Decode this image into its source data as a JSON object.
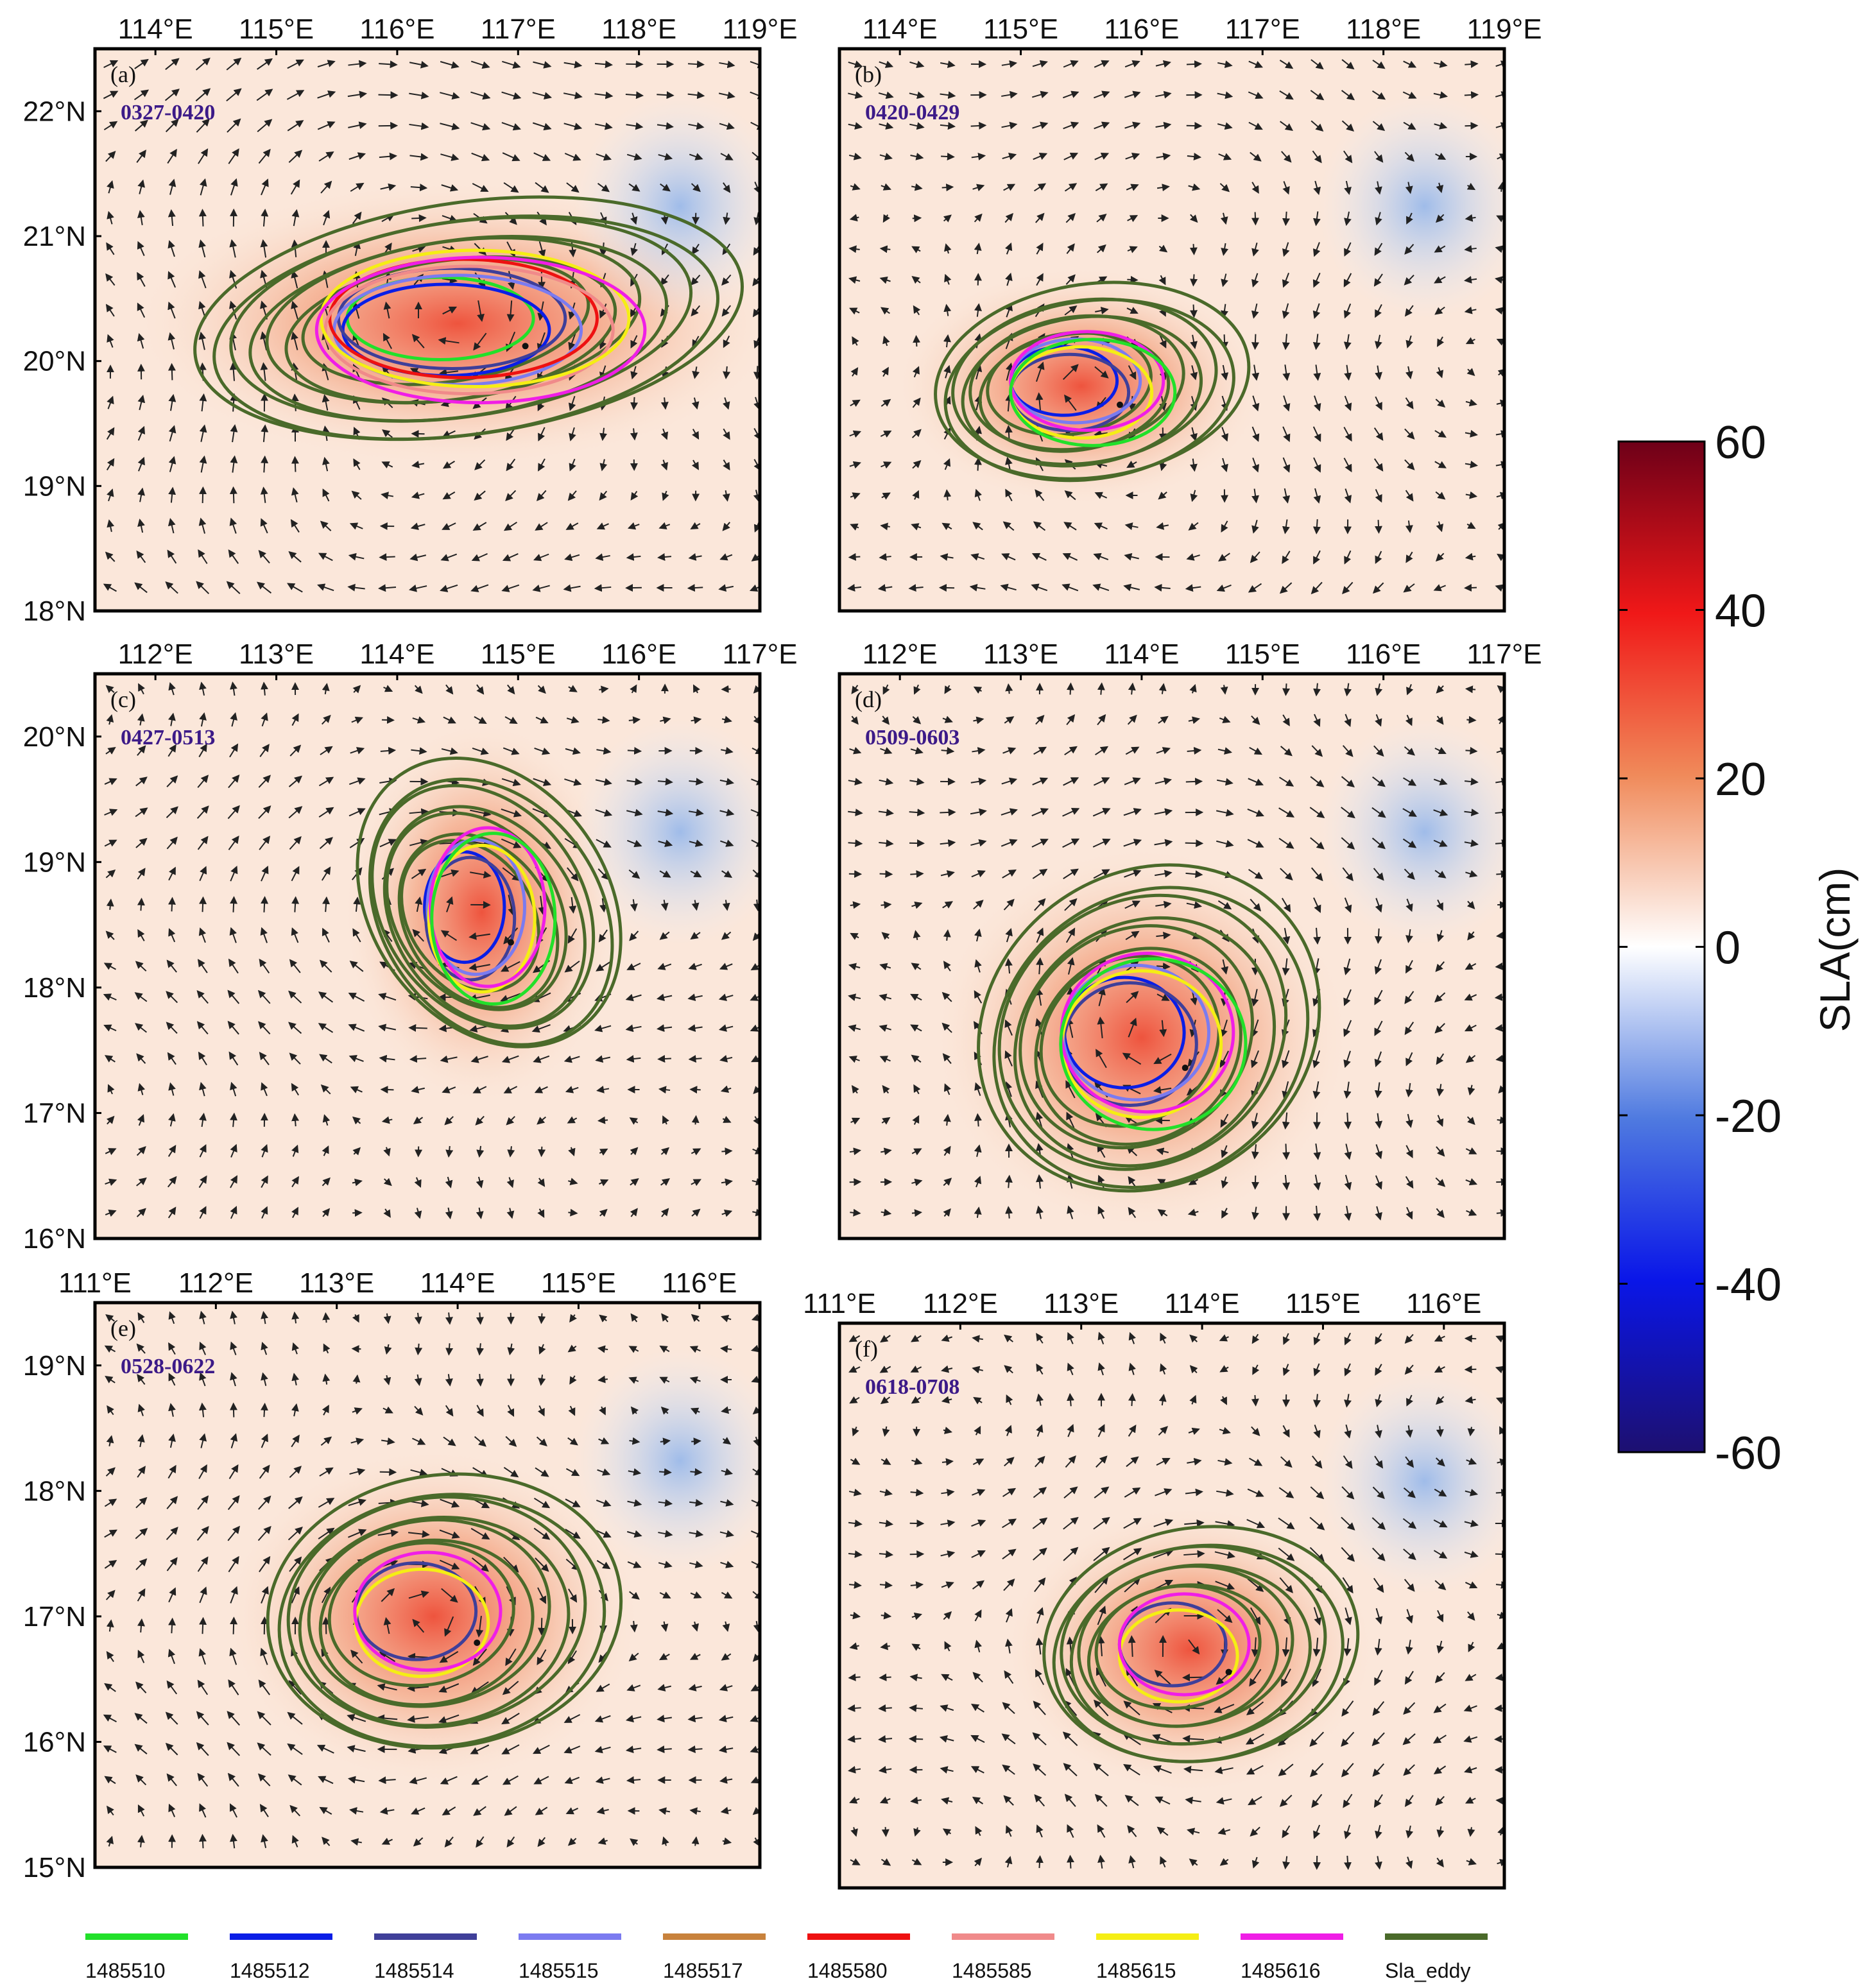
{
  "chart_data": [
    {
      "type": "heatmap",
      "panel_label": "(a)",
      "date_range": "0327-0420",
      "x_ticks": [
        "114°E",
        "115°E",
        "116°E",
        "117°E",
        "118°E",
        "119°E"
      ],
      "y_ticks": [
        "22°N",
        "21°N",
        "20°N",
        "19°N",
        "18°N"
      ],
      "xlim": [
        113.5,
        119.0
      ],
      "ylim": [
        18.0,
        22.5
      ],
      "xlabel": "",
      "ylabel": "",
      "eddy_center": [
        116.5,
        20.3
      ],
      "eddy_radius_deg": [
        1.4,
        0.6
      ],
      "field": "SLA (cm) with surface current vectors"
    },
    {
      "type": "heatmap",
      "panel_label": "(b)",
      "date_range": "0420-0429",
      "x_ticks": [
        "114°E",
        "115°E",
        "116°E",
        "117°E",
        "118°E",
        "119°E"
      ],
      "y_ticks": [],
      "xlim": [
        113.5,
        119.0
      ],
      "ylim": [
        18.0,
        22.5
      ],
      "eddy_center": [
        115.5,
        19.8
      ],
      "eddy_radius_deg": [
        0.8,
        0.5
      ],
      "field": "SLA (cm) with surface current vectors"
    },
    {
      "type": "heatmap",
      "panel_label": "(c)",
      "date_range": "0427-0513",
      "x_ticks": [
        "112°E",
        "113°E",
        "114°E",
        "115°E",
        "116°E",
        "117°E"
      ],
      "y_ticks": [
        "20°N",
        "19°N",
        "18°N",
        "17°N",
        "16°N"
      ],
      "xlim": [
        111.5,
        117.0
      ],
      "ylim": [
        16.0,
        20.5
      ],
      "eddy_center": [
        114.7,
        18.6
      ],
      "eddy_radius_deg": [
        0.6,
        0.8
      ],
      "field": "SLA (cm) with surface current vectors"
    },
    {
      "type": "heatmap",
      "panel_label": "(d)",
      "date_range": "0509-0603",
      "x_ticks": [
        "112°E",
        "113°E",
        "114°E",
        "115°E",
        "116°E",
        "117°E"
      ],
      "y_ticks": [],
      "xlim": [
        111.5,
        117.0
      ],
      "ylim": [
        16.0,
        20.5
      ],
      "eddy_center": [
        114.0,
        17.6
      ],
      "eddy_radius_deg": [
        0.9,
        0.8
      ],
      "field": "SLA (cm) with surface current vectors"
    },
    {
      "type": "heatmap",
      "panel_label": "(e)",
      "date_range": "0528-0622",
      "x_ticks": [
        "111°E",
        "112°E",
        "113°E",
        "114°E",
        "115°E",
        "116°E"
      ],
      "y_ticks": [
        "19°N",
        "18°N",
        "17°N",
        "16°N",
        "15°N"
      ],
      "xlim": [
        111.0,
        116.5
      ],
      "ylim": [
        15.0,
        19.5
      ],
      "eddy_center": [
        113.8,
        17.0
      ],
      "eddy_radius_deg": [
        0.9,
        0.7
      ],
      "field": "SLA (cm) with surface current vectors"
    },
    {
      "type": "heatmap",
      "panel_label": "(f)",
      "date_range": "0618-0708",
      "x_ticks": [
        "111°E",
        "112°E",
        "113°E",
        "114°E",
        "115°E",
        "116°E"
      ],
      "y_ticks": [],
      "xlim": [
        111.0,
        116.5
      ],
      "ylim": [
        15.0,
        19.5
      ],
      "eddy_center": [
        113.9,
        16.9
      ],
      "eddy_radius_deg": [
        0.8,
        0.6
      ],
      "field": "SLA (cm) with surface current vectors"
    }
  ],
  "colorbar": {
    "title": "SLA(cm)",
    "ticks": [
      "60",
      "40",
      "20",
      "0",
      "-20",
      "-40",
      "-60"
    ],
    "range": [
      -60,
      60
    ]
  },
  "legend": {
    "entries": [
      {
        "label": "1485510",
        "color": "#22e02a"
      },
      {
        "label": "1485512",
        "color": "#0a1ee6"
      },
      {
        "label": "1485514",
        "color": "#3f3f99"
      },
      {
        "label": "1485515",
        "color": "#7b7bf0"
      },
      {
        "label": "1485517",
        "color": "#c8823c"
      },
      {
        "label": "1485580",
        "color": "#ee1111"
      },
      {
        "label": "1485585",
        "color": "#f08a8a"
      },
      {
        "label": "1485615",
        "color": "#f5ee14"
      },
      {
        "label": "1485616",
        "color": "#f01ee6"
      },
      {
        "label": "Sla_eddy",
        "color": "#4a6a2a"
      }
    ]
  }
}
